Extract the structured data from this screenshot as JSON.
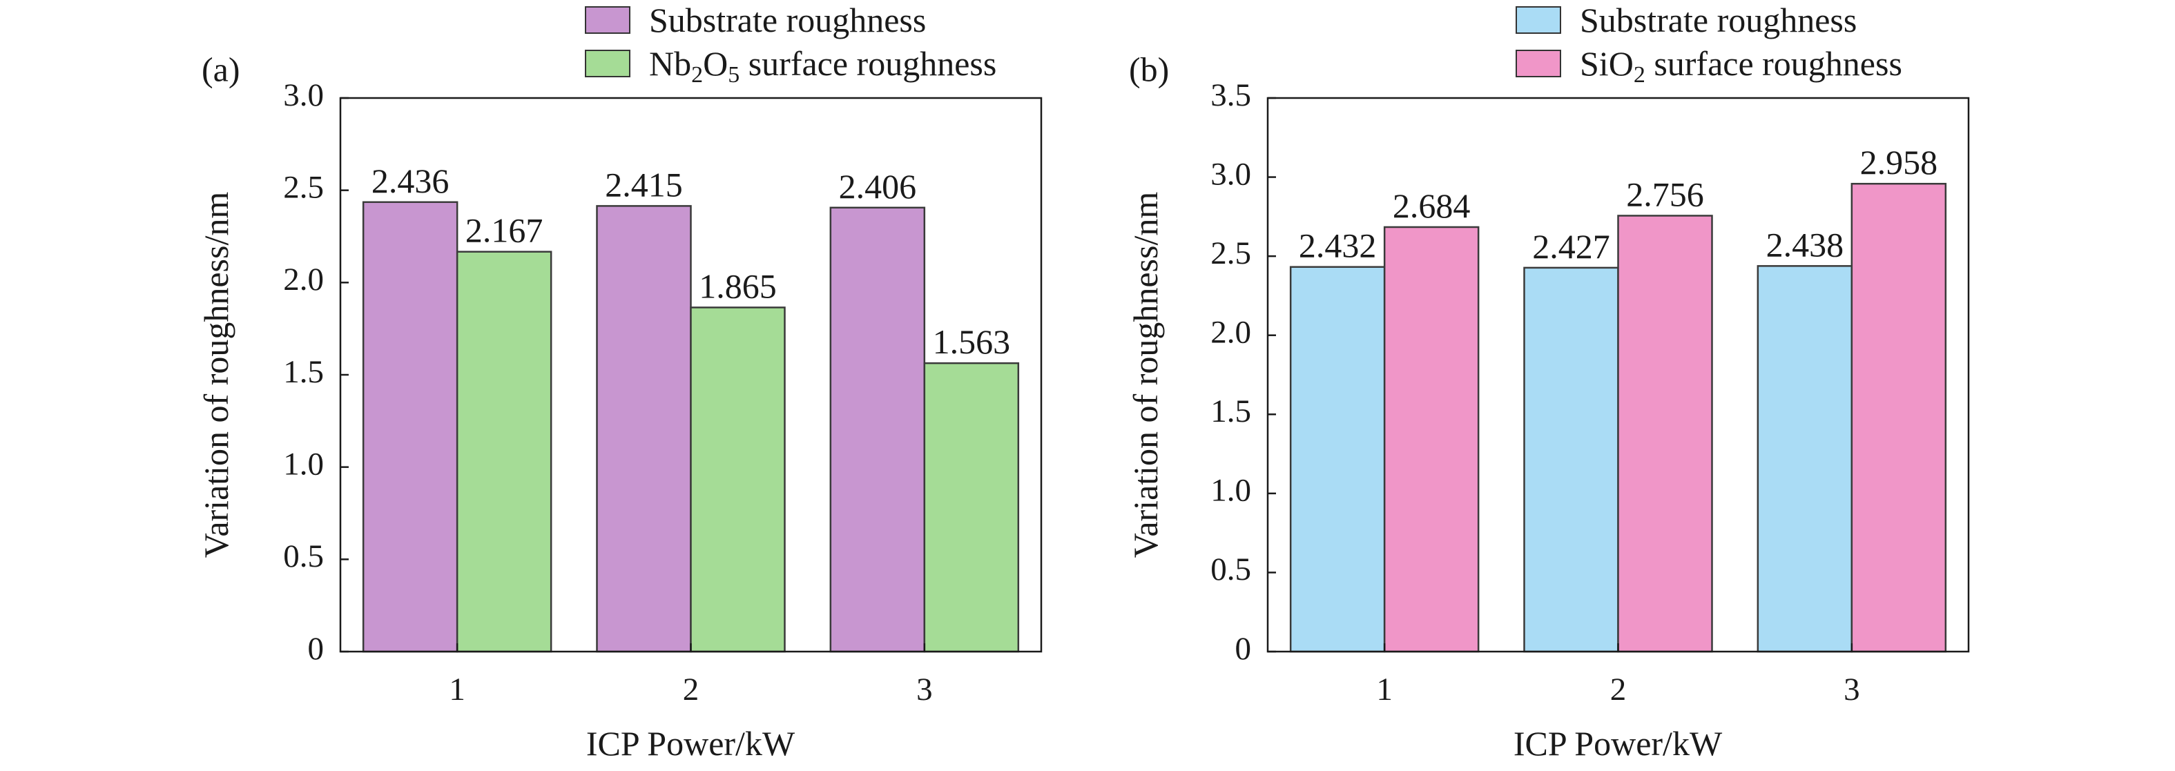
{
  "chart_data": [
    {
      "type": "bar",
      "panel_label": "(a)",
      "categories": [
        "1",
        "2",
        "3"
      ],
      "series": [
        {
          "name": "Substrate roughness",
          "values": [
            2.436,
            2.415,
            2.406
          ],
          "color": "#c896d0"
        },
        {
          "name": "Nb2O5 surface roughness",
          "values": [
            2.167,
            1.865,
            1.563
          ],
          "color": "#a5dc96"
        }
      ],
      "data_labels": [
        [
          "2.436",
          "2.415",
          "2.406"
        ],
        [
          "2.167",
          "1.865",
          "1.563"
        ]
      ],
      "legend": {
        "entries": [
          {
            "parts": [
              {
                "text": "Substrate roughness"
              }
            ]
          },
          {
            "parts": [
              {
                "text": "Nb"
              },
              {
                "text": "2",
                "sub": true
              },
              {
                "text": "O"
              },
              {
                "text": "5",
                "sub": true
              },
              {
                "text": " surface roughness"
              }
            ]
          }
        ],
        "placement": "top"
      },
      "xlabel": "ICP Power/kW",
      "ylabel": "Variation of roughness/nm",
      "ylim": [
        0,
        3.0
      ],
      "yticks": [
        "0",
        "0.5",
        "1.0",
        "1.5",
        "2.0",
        "2.5",
        "3.0"
      ],
      "grid": false
    },
    {
      "type": "bar",
      "panel_label": "(b)",
      "categories": [
        "1",
        "2",
        "3"
      ],
      "series": [
        {
          "name": "Substrate roughness",
          "values": [
            2.432,
            2.427,
            2.438
          ],
          "color": "#aadcf5"
        },
        {
          "name": "SiO2 surface roughness",
          "values": [
            2.684,
            2.756,
            2.958
          ],
          "color": "#f096c8"
        }
      ],
      "data_labels": [
        [
          "2.432",
          "2.427",
          "2.438"
        ],
        [
          "2.684",
          "2.756",
          "2.958"
        ]
      ],
      "legend": {
        "entries": [
          {
            "parts": [
              {
                "text": "Substrate roughness"
              }
            ]
          },
          {
            "parts": [
              {
                "text": "SiO"
              },
              {
                "text": "2",
                "sub": true
              },
              {
                "text": " surface roughness"
              }
            ]
          }
        ],
        "placement": "top"
      },
      "xlabel": "ICP Power/kW",
      "ylabel": "Variation of roughness/nm",
      "ylim": [
        0,
        3.5
      ],
      "yticks": [
        "0",
        "0.5",
        "1.0",
        "1.5",
        "2.0",
        "2.5",
        "3.0",
        "3.5"
      ],
      "grid": false
    }
  ]
}
